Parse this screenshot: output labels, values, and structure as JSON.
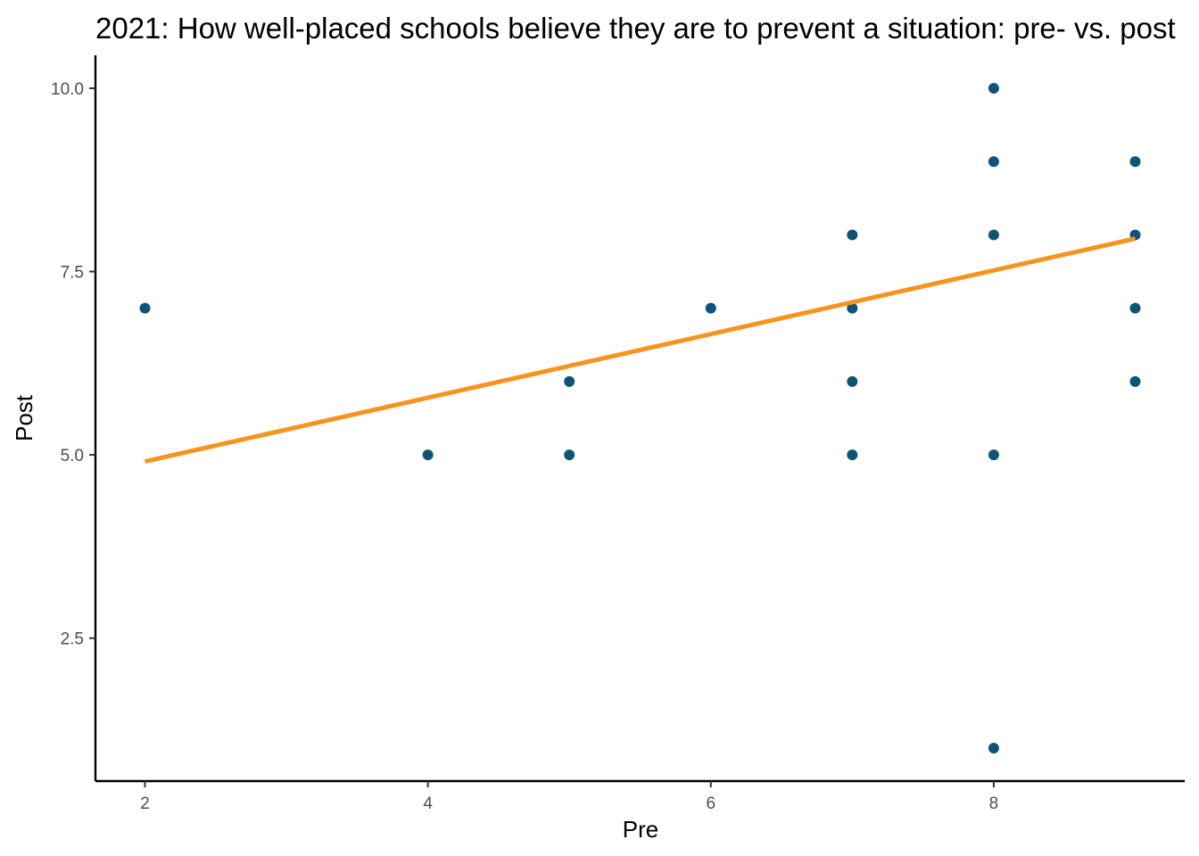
{
  "chart_data": {
    "type": "scatter",
    "title": "2021: How well-placed schools believe they are to prevent a situation: pre- vs. post",
    "xlabel": "Pre",
    "ylabel": "Post",
    "xlim": [
      1.65,
      9.35
    ],
    "ylim": [
      0.55,
      10.45
    ],
    "x_ticks": [
      2,
      4,
      6,
      8
    ],
    "x_tick_labels": [
      "2",
      "4",
      "6",
      "8"
    ],
    "y_ticks": [
      2.5,
      5.0,
      7.5,
      10.0
    ],
    "y_tick_labels": [
      "2.5",
      "5.0",
      "7.5",
      "10.0"
    ],
    "grid": false,
    "points": [
      {
        "x": 2,
        "y": 7
      },
      {
        "x": 4,
        "y": 5
      },
      {
        "x": 5,
        "y": 6
      },
      {
        "x": 5,
        "y": 5
      },
      {
        "x": 6,
        "y": 7
      },
      {
        "x": 7,
        "y": 8
      },
      {
        "x": 7,
        "y": 7
      },
      {
        "x": 7,
        "y": 6
      },
      {
        "x": 7,
        "y": 5
      },
      {
        "x": 8,
        "y": 10
      },
      {
        "x": 8,
        "y": 9
      },
      {
        "x": 8,
        "y": 8
      },
      {
        "x": 8,
        "y": 5
      },
      {
        "x": 8,
        "y": 1
      },
      {
        "x": 9,
        "y": 9
      },
      {
        "x": 9,
        "y": 8
      },
      {
        "x": 9,
        "y": 7
      },
      {
        "x": 9,
        "y": 6
      }
    ],
    "trend_line": {
      "x": [
        2,
        9
      ],
      "y": [
        4.91,
        7.95
      ]
    },
    "colors": {
      "points": "#0e5478",
      "trend": "#f7941d",
      "axis": "#000000",
      "tick_text": "#4d4d4d"
    }
  }
}
